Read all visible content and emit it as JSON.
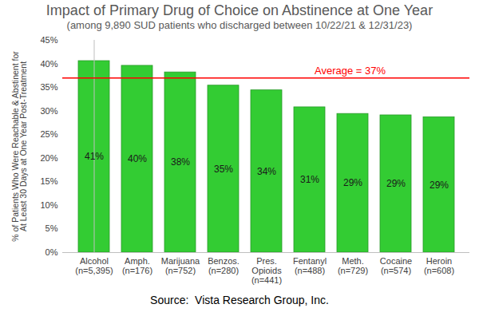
{
  "chart_data": {
    "type": "bar",
    "title": "Impact of Primary Drug of Choice on Abstinence at One Year",
    "subtitle": "(among 9,890 SUD patients who discharged between 10/22/21 & 12/31/23)",
    "y_label": "% of Patients Who Were Reachable & Abstinent for\nAt Least 30 Days at One Year Post-Treatment",
    "caption": "Source:  Vista Research Group, Inc.",
    "categories": [
      "Alcohol\n(n=5,395)",
      "Amph.\n(n=176)",
      "Marijuana\n(n=752)",
      "Benzos.\n(n=280)",
      "Pres.\nOpioids\n(n=441)",
      "Fentanyl\n(n=488)",
      "Meth.\n(n=729)",
      "Cocaine\n(n=574)",
      "Heroin\n(n=608)"
    ],
    "values": [
      40.6,
      39.6,
      38.2,
      35.4,
      34.4,
      30.8,
      29.4,
      29.1,
      28.7
    ],
    "value_labels": [
      "41%",
      "40%",
      "38%",
      "35%",
      "34%",
      "31%",
      "29%",
      "29%",
      "29%"
    ],
    "color": "#33cc33",
    "data_labels": true,
    "grid": false,
    "ylim": [
      0,
      45
    ],
    "yticks": [
      {
        "value": 0,
        "label": "0%"
      },
      {
        "value": 5,
        "label": "5%"
      },
      {
        "value": 10,
        "label": "10%"
      },
      {
        "value": 15,
        "label": "15%"
      },
      {
        "value": 20,
        "label": "20%"
      },
      {
        "value": 25,
        "label": "25%"
      },
      {
        "value": 30,
        "label": "30%"
      },
      {
        "value": 35,
        "label": "35%"
      },
      {
        "value": 40,
        "label": "40%"
      },
      {
        "value": 45,
        "label": "45%"
      }
    ],
    "reference_line": {
      "value": 37,
      "label": "Average = 37%",
      "color": "#ff0000"
    }
  }
}
